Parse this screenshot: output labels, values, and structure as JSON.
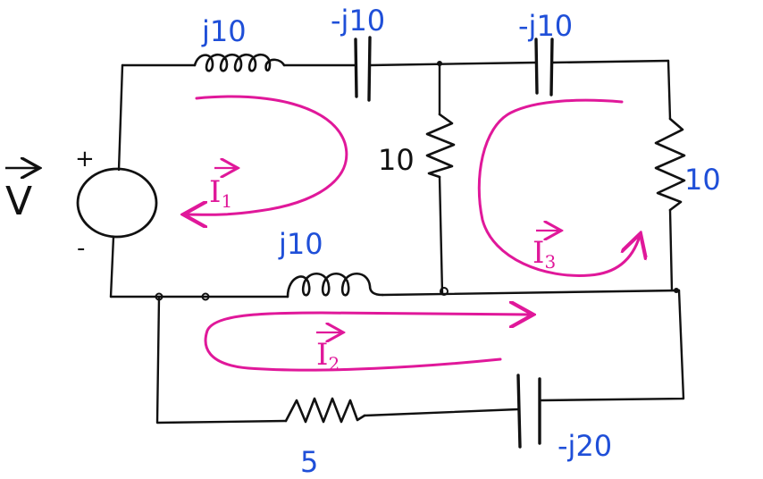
{
  "components": {
    "inductor_top": "j10",
    "capacitor_top_left": "-j10",
    "capacitor_top_right": "-j10",
    "resistor_middle": "10",
    "resistor_right": "10",
    "inductor_middle": "j10",
    "resistor_bottom": "5",
    "capacitor_bottom": "-j20"
  },
  "source": {
    "label": "V",
    "plus": "+",
    "minus": "-"
  },
  "loops": {
    "i1": {
      "letter": "I",
      "sub": "1"
    },
    "i2": {
      "letter": "I",
      "sub": "2"
    },
    "i3": {
      "letter": "I",
      "sub": "3"
    }
  },
  "colors": {
    "wire": "#111111",
    "label": "#1f4fd8",
    "loop": "#e0189a"
  }
}
